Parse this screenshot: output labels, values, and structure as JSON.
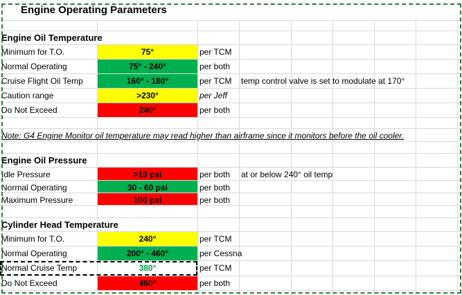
{
  "title": "Engine Operating Parameters",
  "sections": [
    {
      "heading": "Engine Oil Temperature",
      "rows": [
        [
          "Minimum for T.O.",
          "75°",
          "per TCM"
        ],
        [
          "Normal Operating",
          "75° - 240°",
          "per both"
        ],
        [
          "Cruise Flight Oil Temp",
          "160° - 180°",
          "per TCM",
          "temp control valve is set to modulate at 170°"
        ],
        [
          "Caution range",
          ">230°",
          "per Jeff"
        ],
        [
          "Do Not Exceed",
          "240°",
          "per both"
        ]
      ]
    },
    {
      "heading": "Engine Oil Pressure",
      "rows": [
        [
          "Idle Pressure",
          ">10 psi",
          "per both",
          "at or below 240° oil temp"
        ],
        [
          "Normal Operating",
          "30 - 60 psi",
          "per both"
        ],
        [
          "Maximum Pressure",
          "100 psi",
          "per both"
        ]
      ]
    },
    {
      "heading": "Cylinder Head Temperature",
      "rows": [
        [
          "Minimum for T.O.",
          "240°",
          "per TCM"
        ],
        [
          "Normal Operating",
          "200° - 460°",
          "per Cessna"
        ],
        [
          "Normal Cruise Temp",
          "380°",
          "per TCM"
        ],
        [
          "Do Not Exceed",
          "460°",
          "per both"
        ]
      ]
    }
  ],
  "note": "Note: G4 Engine Monitor oil temperature may read higher than airframe since it monitors before the oil cooler."
}
